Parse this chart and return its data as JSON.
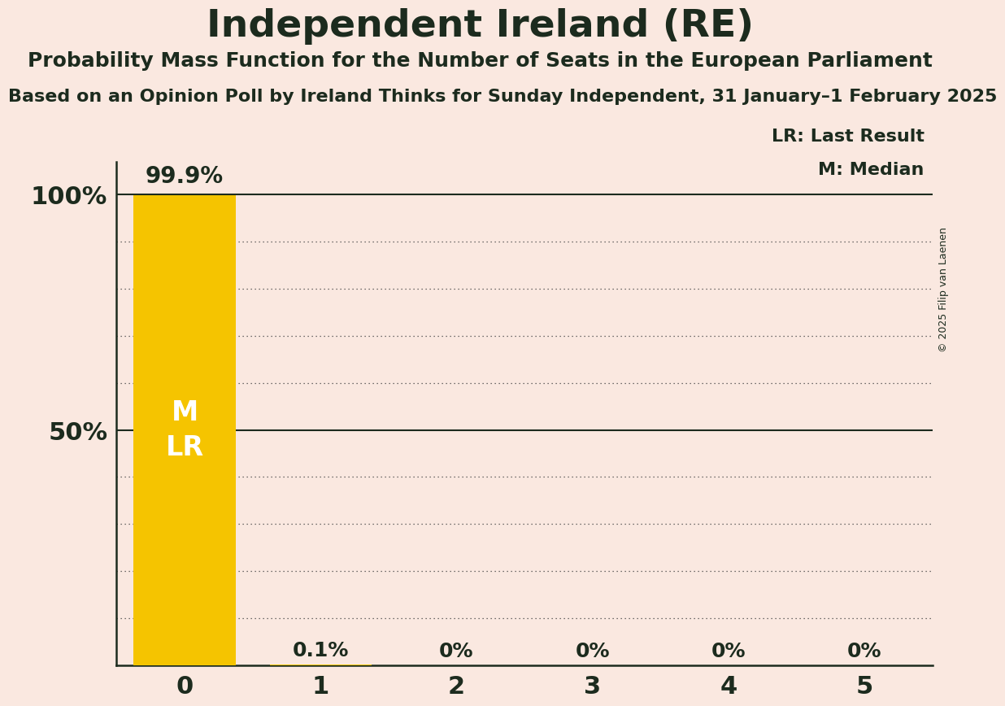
{
  "title": "Independent Ireland (RE)",
  "subtitle": "Probability Mass Function for the Number of Seats in the European Parliament",
  "source_line": "Based on an Opinion Poll by Ireland Thinks for Sunday Independent, 31 January–1 February 2025",
  "copyright": "© 2025 Filip van Laenen",
  "categories": [
    0,
    1,
    2,
    3,
    4,
    5
  ],
  "values": [
    99.9,
    0.1,
    0.0,
    0.0,
    0.0,
    0.0
  ],
  "bar_color": "#F5C400",
  "background_color": "#FAE8E0",
  "text_color": "#1C2B1E",
  "ylim": [
    0,
    107
  ],
  "xlim": [
    -0.5,
    5.5
  ],
  "legend_lr": "LR: Last Result",
  "legend_m": "M: Median",
  "bar_labels": [
    "99.9%",
    "0.1%",
    "0%",
    "0%",
    "0%",
    "0%"
  ],
  "inner_label_m": "M",
  "inner_label_lr": "LR",
  "bar_width": 0.75
}
